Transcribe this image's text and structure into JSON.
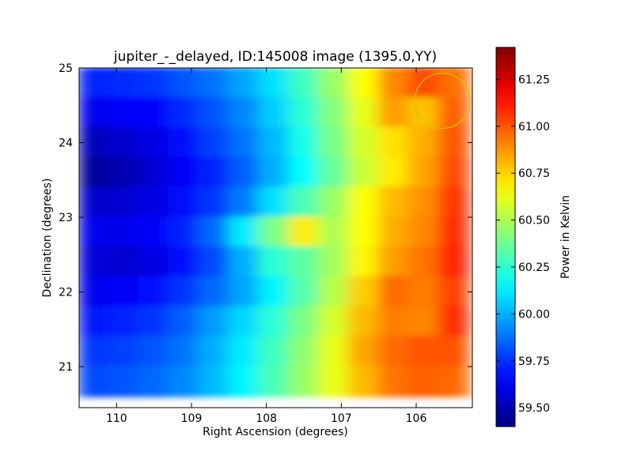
{
  "chart_data": {
    "type": "heatmap",
    "title": "jupiter_-_delayed, ID:145008 image (1395.0,YY)",
    "xlabel": "Right Ascension (degrees)",
    "ylabel": "Declination (degrees)",
    "colorbar_label": "Power in Kelvin",
    "xlim": [
      110.5,
      105.25
    ],
    "ylim": [
      20.45,
      25.0
    ],
    "x_ticks": [
      110,
      109,
      108,
      107,
      106
    ],
    "x_tick_labels": [
      "110",
      "109",
      "108",
      "107",
      "106"
    ],
    "y_ticks": [
      21,
      22,
      23,
      24,
      25
    ],
    "y_tick_labels": [
      "21",
      "22",
      "23",
      "24",
      "25"
    ],
    "colorbar_range": [
      59.4,
      61.42
    ],
    "colorbar_ticks": [
      59.5,
      59.75,
      60.0,
      60.25,
      60.5,
      60.75,
      61.0,
      61.25
    ],
    "colorbar_tick_labels": [
      "59.50",
      "59.75",
      "60.00",
      "60.25",
      "60.50",
      "60.75",
      "61.00",
      "61.25"
    ],
    "colormap": "jet",
    "ra_values": [
      110.3,
      109.9,
      109.5,
      109.1,
      108.7,
      108.3,
      107.9,
      107.5,
      107.1,
      106.7,
      106.3,
      105.9,
      105.5
    ],
    "dec_values": [
      24.8,
      24.4,
      24.0,
      23.6,
      23.2,
      22.8,
      22.4,
      22.0,
      21.6,
      21.2,
      20.8
    ],
    "values": [
      [
        59.72,
        59.74,
        59.76,
        59.82,
        59.88,
        59.98,
        60.1,
        60.28,
        60.46,
        60.66,
        60.9,
        61.02,
        60.95
      ],
      [
        59.62,
        59.64,
        59.66,
        59.74,
        59.82,
        59.92,
        60.06,
        60.24,
        60.42,
        60.62,
        60.86,
        60.78,
        60.98
      ],
      [
        59.52,
        59.56,
        59.6,
        59.68,
        59.78,
        59.88,
        60.02,
        60.2,
        60.4,
        60.58,
        60.72,
        60.82,
        61.0
      ],
      [
        59.45,
        59.5,
        59.56,
        59.64,
        59.72,
        59.84,
        60.0,
        60.16,
        60.36,
        60.56,
        60.7,
        60.84,
        61.02
      ],
      [
        59.55,
        59.56,
        59.6,
        59.68,
        59.76,
        59.9,
        60.1,
        60.3,
        60.46,
        60.66,
        60.8,
        60.88,
        61.06
      ],
      [
        59.62,
        59.62,
        59.64,
        59.72,
        59.86,
        60.12,
        60.4,
        60.7,
        60.5,
        60.66,
        60.82,
        60.9,
        61.08
      ],
      [
        59.58,
        59.56,
        59.6,
        59.68,
        59.8,
        60.0,
        60.24,
        60.34,
        60.48,
        60.68,
        60.86,
        60.94,
        61.1
      ],
      [
        59.62,
        59.64,
        59.68,
        59.76,
        59.86,
        59.98,
        60.14,
        60.32,
        60.52,
        60.76,
        60.96,
        60.92,
        61.04
      ],
      [
        59.7,
        59.72,
        59.76,
        59.84,
        59.96,
        60.08,
        60.24,
        60.4,
        60.58,
        60.8,
        60.92,
        60.9,
        61.08
      ],
      [
        59.76,
        59.78,
        59.82,
        59.88,
        60.0,
        60.12,
        60.28,
        60.44,
        60.62,
        60.84,
        60.96,
        61.0,
        61.0
      ],
      [
        59.8,
        59.82,
        59.86,
        59.92,
        60.02,
        60.14,
        60.3,
        60.46,
        60.62,
        60.8,
        60.94,
        60.98,
        60.96
      ]
    ],
    "circle_center": [
      105.65,
      24.56
    ],
    "circle_radius": 0.37,
    "grid": false
  }
}
